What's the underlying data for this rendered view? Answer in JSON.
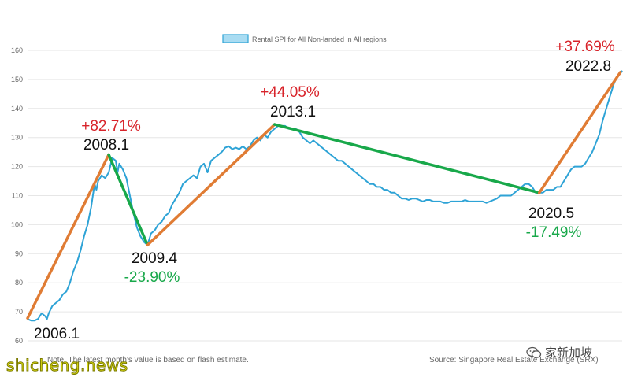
{
  "chart_data": {
    "type": "line",
    "legend": {
      "label": "Rental SPI for All Non-landed in All regions",
      "placement": "top-center",
      "color": "#2ea3d6"
    },
    "y_axis": {
      "ticks": [
        60,
        70,
        80,
        90,
        100,
        110,
        120,
        130,
        140,
        150,
        160
      ],
      "ylim": [
        60,
        160
      ]
    },
    "x_range": [
      2006.0,
      2022.85
    ],
    "grid": true,
    "series": [
      {
        "name": "Rental SPI for All Non-landed in All regions",
        "color": "#2ea3d6",
        "points": [
          [
            2006.0,
            67.5
          ],
          [
            2006.1,
            67.0
          ],
          [
            2006.2,
            67.0
          ],
          [
            2006.3,
            67.6
          ],
          [
            2006.4,
            69.5
          ],
          [
            2006.5,
            68.5
          ],
          [
            2006.55,
            67.5
          ],
          [
            2006.6,
            69.5
          ],
          [
            2006.7,
            72
          ],
          [
            2006.8,
            73
          ],
          [
            2006.9,
            74
          ],
          [
            2007.0,
            76
          ],
          [
            2007.1,
            77
          ],
          [
            2007.2,
            80
          ],
          [
            2007.3,
            84
          ],
          [
            2007.4,
            87
          ],
          [
            2007.5,
            91
          ],
          [
            2007.6,
            96
          ],
          [
            2007.7,
            100
          ],
          [
            2007.8,
            106
          ],
          [
            2007.9,
            114
          ],
          [
            2007.95,
            112
          ],
          [
            2008.0,
            115
          ],
          [
            2008.1,
            117
          ],
          [
            2008.2,
            116
          ],
          [
            2008.3,
            118
          ],
          [
            2008.4,
            123
          ],
          [
            2008.5,
            122
          ],
          [
            2008.55,
            118
          ],
          [
            2008.6,
            121
          ],
          [
            2008.7,
            119
          ],
          [
            2008.8,
            116
          ],
          [
            2008.9,
            110
          ],
          [
            2009.0,
            104
          ],
          [
            2009.1,
            99
          ],
          [
            2009.2,
            96
          ],
          [
            2009.3,
            94
          ],
          [
            2009.4,
            93
          ],
          [
            2009.5,
            97
          ],
          [
            2009.6,
            98
          ],
          [
            2009.7,
            100
          ],
          [
            2009.8,
            101
          ],
          [
            2009.9,
            103
          ],
          [
            2010.0,
            104
          ],
          [
            2010.1,
            107
          ],
          [
            2010.2,
            109
          ],
          [
            2010.3,
            111
          ],
          [
            2010.4,
            114
          ],
          [
            2010.5,
            115
          ],
          [
            2010.6,
            116
          ],
          [
            2010.7,
            117
          ],
          [
            2010.8,
            116
          ],
          [
            2010.9,
            120
          ],
          [
            2011.0,
            121
          ],
          [
            2011.1,
            118
          ],
          [
            2011.2,
            122
          ],
          [
            2011.3,
            123
          ],
          [
            2011.4,
            124
          ],
          [
            2011.5,
            125
          ],
          [
            2011.6,
            126.5
          ],
          [
            2011.7,
            127
          ],
          [
            2011.8,
            126
          ],
          [
            2011.9,
            126.5
          ],
          [
            2012.0,
            126
          ],
          [
            2012.1,
            127
          ],
          [
            2012.2,
            126
          ],
          [
            2012.3,
            127
          ],
          [
            2012.4,
            129
          ],
          [
            2012.5,
            130
          ],
          [
            2012.6,
            129
          ],
          [
            2012.7,
            131
          ],
          [
            2012.8,
            130
          ],
          [
            2012.9,
            132
          ],
          [
            2013.0,
            133
          ],
          [
            2013.1,
            134
          ],
          [
            2013.2,
            134
          ],
          [
            2013.3,
            134
          ],
          [
            2013.4,
            133
          ],
          [
            2013.5,
            133
          ],
          [
            2013.6,
            133
          ],
          [
            2013.7,
            132
          ],
          [
            2013.8,
            130
          ],
          [
            2013.9,
            129
          ],
          [
            2014.0,
            128
          ],
          [
            2014.1,
            129
          ],
          [
            2014.2,
            128
          ],
          [
            2014.3,
            127
          ],
          [
            2014.4,
            126
          ],
          [
            2014.5,
            125
          ],
          [
            2014.6,
            124
          ],
          [
            2014.7,
            123
          ],
          [
            2014.8,
            122
          ],
          [
            2014.9,
            122
          ],
          [
            2015.0,
            121
          ],
          [
            2015.1,
            120
          ],
          [
            2015.2,
            119
          ],
          [
            2015.3,
            118
          ],
          [
            2015.4,
            117
          ],
          [
            2015.5,
            116
          ],
          [
            2015.6,
            115
          ],
          [
            2015.7,
            114
          ],
          [
            2015.8,
            114
          ],
          [
            2015.9,
            113
          ],
          [
            2016.0,
            113
          ],
          [
            2016.1,
            112
          ],
          [
            2016.2,
            112
          ],
          [
            2016.3,
            111
          ],
          [
            2016.4,
            111
          ],
          [
            2016.5,
            110
          ],
          [
            2016.6,
            109
          ],
          [
            2016.7,
            109
          ],
          [
            2016.8,
            108.5
          ],
          [
            2016.9,
            109
          ],
          [
            2017.0,
            109
          ],
          [
            2017.1,
            108.5
          ],
          [
            2017.2,
            108
          ],
          [
            2017.3,
            108.5
          ],
          [
            2017.4,
            108.5
          ],
          [
            2017.5,
            108
          ],
          [
            2017.6,
            108
          ],
          [
            2017.7,
            108
          ],
          [
            2017.8,
            107.5
          ],
          [
            2017.9,
            107.5
          ],
          [
            2018.0,
            108
          ],
          [
            2018.1,
            108
          ],
          [
            2018.2,
            108
          ],
          [
            2018.3,
            108
          ],
          [
            2018.4,
            108.5
          ],
          [
            2018.5,
            108
          ],
          [
            2018.6,
            108
          ],
          [
            2018.7,
            108
          ],
          [
            2018.8,
            108
          ],
          [
            2018.9,
            108
          ],
          [
            2019.0,
            107.5
          ],
          [
            2019.1,
            108
          ],
          [
            2019.2,
            108.5
          ],
          [
            2019.3,
            109
          ],
          [
            2019.4,
            110
          ],
          [
            2019.5,
            110
          ],
          [
            2019.6,
            110
          ],
          [
            2019.7,
            110
          ],
          [
            2019.8,
            111
          ],
          [
            2019.9,
            112
          ],
          [
            2020.0,
            113
          ],
          [
            2020.1,
            114
          ],
          [
            2020.2,
            114
          ],
          [
            2020.3,
            113
          ],
          [
            2020.4,
            111
          ],
          [
            2020.5,
            111
          ],
          [
            2020.6,
            111
          ],
          [
            2020.7,
            112
          ],
          [
            2020.8,
            112
          ],
          [
            2020.9,
            112
          ],
          [
            2021.0,
            113
          ],
          [
            2021.1,
            113
          ],
          [
            2021.2,
            115
          ],
          [
            2021.3,
            117
          ],
          [
            2021.4,
            119
          ],
          [
            2021.5,
            120
          ],
          [
            2021.6,
            120
          ],
          [
            2021.7,
            120
          ],
          [
            2021.8,
            121
          ],
          [
            2021.9,
            123
          ],
          [
            2022.0,
            125
          ],
          [
            2022.1,
            128
          ],
          [
            2022.2,
            131
          ],
          [
            2022.3,
            136
          ],
          [
            2022.4,
            140
          ],
          [
            2022.5,
            144
          ],
          [
            2022.6,
            148
          ],
          [
            2022.7,
            151
          ],
          [
            2022.8,
            152
          ],
          [
            2022.85,
            153
          ]
        ]
      }
    ],
    "segments": [
      {
        "from": [
          2006.0,
          67.8
        ],
        "to": [
          2008.3,
          124.1
        ],
        "color": "#e07c34",
        "label": "+82.71%"
      },
      {
        "from": [
          2008.3,
          124.1
        ],
        "to": [
          2009.4,
          93.0
        ],
        "color": "#18a84a",
        "label": "-23.90%"
      },
      {
        "from": [
          2009.4,
          93.0
        ],
        "to": [
          2013.0,
          134.5
        ],
        "color": "#e07c34",
        "label": "+44.05%"
      },
      {
        "from": [
          2013.0,
          134.5
        ],
        "to": [
          2020.5,
          111.0
        ],
        "color": "#18a84a",
        "label": "-17.49%"
      },
      {
        "from": [
          2020.5,
          111.0
        ],
        "to": [
          2022.8,
          152.5
        ],
        "color": "#e07c34",
        "label": "+37.69%"
      }
    ],
    "annotations": [
      {
        "period": "2006.1",
        "x": 2006.0,
        "y": 67.8,
        "change": ""
      },
      {
        "period": "2008.1",
        "x": 2008.3,
        "y": 124.1,
        "change": "+82.71%",
        "change_color": "#d8232a"
      },
      {
        "period": "2009.4",
        "x": 2009.4,
        "y": 93.0,
        "change": "-23.90%",
        "change_color": "#18a84a"
      },
      {
        "period": "2013.1",
        "x": 2013.0,
        "y": 134.5,
        "change": "+44.05%",
        "change_color": "#d8232a"
      },
      {
        "period": "2020.5",
        "x": 2020.5,
        "y": 111.0,
        "change": "-17.49%",
        "change_color": "#18a84a"
      },
      {
        "period": "2022.8",
        "x": 2022.8,
        "y": 152.5,
        "change": "+37.69%",
        "change_color": "#d8232a"
      }
    ]
  },
  "footer": {
    "note": "Note: The latest month's value is based on flash estimate.",
    "source": "Source: Singapore Real Estate Exchange (SRX)"
  },
  "watermark": {
    "site": "shicheng.news",
    "brand": "家新加坡"
  }
}
